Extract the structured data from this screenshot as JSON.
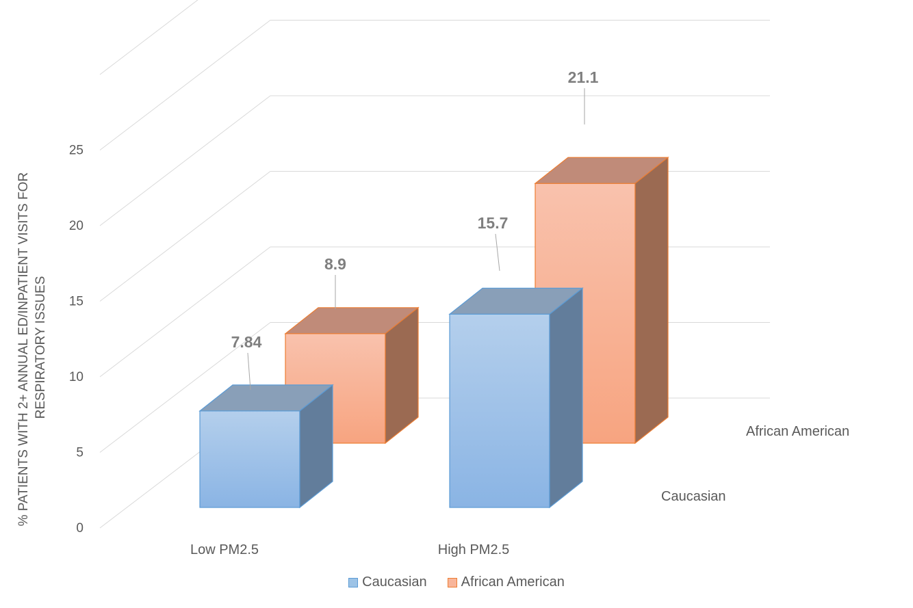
{
  "chart_data": {
    "type": "bar",
    "categories": [
      "Low PM2.5",
      "High PM2.5"
    ],
    "series": [
      {
        "name": "Caucasian",
        "values": [
          7.84,
          15.7
        ],
        "color": "#9dc3e6",
        "edge": "#5b9bd5"
      },
      {
        "name": "African American",
        "values": [
          8.9,
          21.1
        ],
        "color": "#f8b59a",
        "edge": "#ed7d31"
      }
    ],
    "data_labels": [
      "7.84",
      "15.7",
      "8.9",
      "21.1"
    ],
    "ylabel_lines": [
      "% PATIENTS WITH 2+ ANNUAL ED/INPATIENT VISITS FOR",
      "RESPIRATORY ISSUES"
    ],
    "yticks": [
      0,
      5,
      10,
      15,
      20,
      25
    ],
    "ylim": [
      0,
      25
    ],
    "depth_labels": [
      "Caucasian",
      "African American"
    ],
    "legend": [
      "Caucasian",
      "African American"
    ],
    "legend_position": "bottom",
    "grid": true
  }
}
